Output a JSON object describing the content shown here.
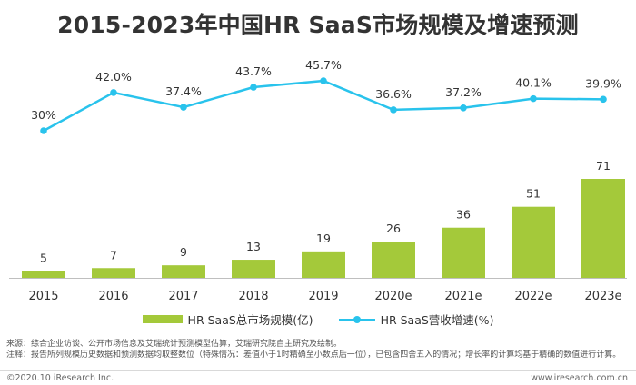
{
  "title": "2015-2023年中国HR SaaS市场规模及增速预测",
  "colors": {
    "bar": "#a4c93a",
    "line": "#29c3ec",
    "axis": "#bfbfbf"
  },
  "chart_data": {
    "type": "bar+line",
    "title": "2015-2023年中国HR SaaS市场规模及增速预测",
    "categories": [
      "2015",
      "2016",
      "2017",
      "2018",
      "2019",
      "2020e",
      "2021e",
      "2022e",
      "2023e"
    ],
    "series": [
      {
        "name": "HR SaaS总市场规模(亿)",
        "type": "bar",
        "values": [
          5,
          7,
          9,
          13,
          19,
          26,
          36,
          51,
          71
        ],
        "labels": [
          "5",
          "7",
          "9",
          "13",
          "19",
          "26",
          "36",
          "51",
          "71"
        ]
      },
      {
        "name": "HR SaaS营收增速(%)",
        "type": "line",
        "values": [
          30,
          42.0,
          37.4,
          43.7,
          45.7,
          36.6,
          37.2,
          40.1,
          39.9
        ],
        "labels": [
          "30%",
          "42.0%",
          "37.4%",
          "43.7%",
          "45.7%",
          "36.6%",
          "37.2%",
          "40.1%",
          "39.9%"
        ]
      }
    ],
    "bar_ylim": [
      0,
      75
    ],
    "line_ylim": [
      0,
      45.7
    ],
    "legend_position": "bottom"
  },
  "notes": {
    "source": "来源：综合企业访谈、公开市场信息及艾瑞统计预测模型估算，艾瑞研究院自主研究及绘制。",
    "annotation": "注释：报告所列规模历史数据和预测数据均取整数位（特殊情况：差值小于1时精确至小数点后一位），已包含四舍五入的情况；增长率的计算均基于精确的数值进行计算。"
  },
  "footer": {
    "copyright": "©2020.10 iResearch Inc.",
    "website": "www.iresearch.com.cn"
  }
}
